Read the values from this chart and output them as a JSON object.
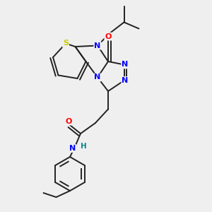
{
  "bg_color": "#efefef",
  "atom_colors": {
    "S": "#cccc00",
    "N": "#0000ff",
    "O": "#ff0000",
    "H": "#008b8b",
    "C": "#000000"
  },
  "bond_color": "#222222",
  "bond_width": 1.4
}
